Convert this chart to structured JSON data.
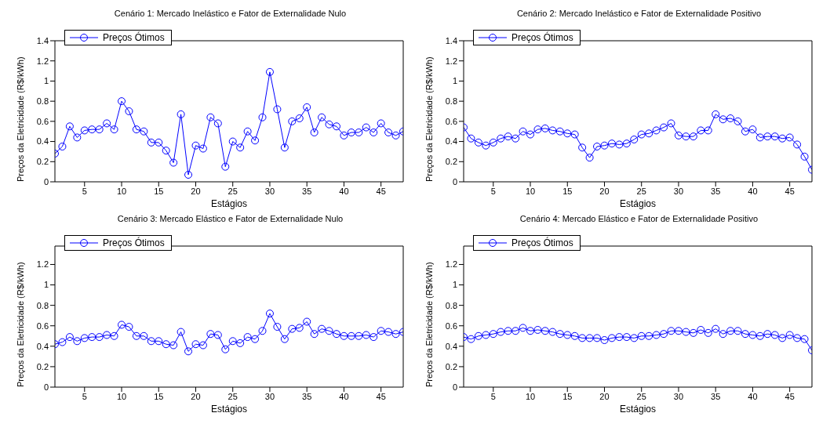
{
  "chart_data": [
    {
      "type": "line",
      "title": "Cenário 1: Mercado Inelástico e Fator de Externalidade Nulo",
      "xlabel": "Estágios",
      "ylabel": "Preços da Eletricidade (R$/kWh)",
      "x": [
        1,
        2,
        3,
        4,
        5,
        6,
        7,
        8,
        9,
        10,
        11,
        12,
        13,
        14,
        15,
        16,
        17,
        18,
        19,
        20,
        21,
        22,
        23,
        24,
        25,
        26,
        27,
        28,
        29,
        30,
        31,
        32,
        33,
        34,
        35,
        36,
        37,
        38,
        39,
        40,
        41,
        42,
        43,
        44,
        45,
        46,
        47,
        48
      ],
      "xlim": [
        1,
        48
      ],
      "xticks": [
        5,
        10,
        15,
        20,
        25,
        30,
        35,
        40,
        45
      ],
      "ylim": [
        0,
        1.4
      ],
      "yticks": [
        0,
        0.2,
        0.4,
        0.6,
        0.8,
        1,
        1.2,
        1.4
      ],
      "grid": false,
      "legend": "top left",
      "marker": "circle",
      "line_style": "solid",
      "series": [
        {
          "name": "Preços Ótimos",
          "color": "#0000ff",
          "values": [
            0.28,
            0.35,
            0.55,
            0.44,
            0.51,
            0.52,
            0.52,
            0.58,
            0.52,
            0.8,
            0.7,
            0.52,
            0.5,
            0.39,
            0.39,
            0.31,
            0.19,
            0.67,
            0.07,
            0.36,
            0.33,
            0.64,
            0.58,
            0.15,
            0.4,
            0.34,
            0.5,
            0.41,
            0.64,
            1.09,
            0.72,
            0.34,
            0.6,
            0.63,
            0.74,
            0.49,
            0.64,
            0.57,
            0.55,
            0.46,
            0.49,
            0.49,
            0.54,
            0.49,
            0.58,
            0.49,
            0.46,
            0.5
          ]
        }
      ]
    },
    {
      "type": "line",
      "title": "Cenário 2: Mercado Inelástico e Fator de Externalidade Positivo",
      "xlabel": "Estágios",
      "ylabel": "Preços da Eletricidade (R$/kWh)",
      "x": [
        1,
        2,
        3,
        4,
        5,
        6,
        7,
        8,
        9,
        10,
        11,
        12,
        13,
        14,
        15,
        16,
        17,
        18,
        19,
        20,
        21,
        22,
        23,
        24,
        25,
        26,
        27,
        28,
        29,
        30,
        31,
        32,
        33,
        34,
        35,
        36,
        37,
        38,
        39,
        40,
        41,
        42,
        43,
        44,
        45,
        46,
        47,
        48
      ],
      "xlim": [
        1,
        48
      ],
      "xticks": [
        5,
        10,
        15,
        20,
        25,
        30,
        35,
        40,
        45
      ],
      "ylim": [
        0,
        1.4
      ],
      "yticks": [
        0,
        0.2,
        0.4,
        0.6,
        0.8,
        1,
        1.2,
        1.4
      ],
      "grid": false,
      "legend": "top left",
      "marker": "circle",
      "line_style": "solid",
      "series": [
        {
          "name": "Preços Ótimos",
          "color": "#0000ff",
          "values": [
            0.54,
            0.43,
            0.39,
            0.36,
            0.39,
            0.43,
            0.45,
            0.43,
            0.5,
            0.47,
            0.52,
            0.53,
            0.51,
            0.5,
            0.48,
            0.47,
            0.34,
            0.24,
            0.35,
            0.36,
            0.38,
            0.37,
            0.38,
            0.42,
            0.47,
            0.48,
            0.51,
            0.54,
            0.58,
            0.46,
            0.45,
            0.45,
            0.51,
            0.51,
            0.67,
            0.62,
            0.63,
            0.6,
            0.5,
            0.52,
            0.44,
            0.45,
            0.45,
            0.43,
            0.44,
            0.37,
            0.25,
            0.12
          ]
        }
      ]
    },
    {
      "type": "line",
      "title": "Cenário 3: Mercado Elástico e Fator de Externalidade Nulo",
      "xlabel": "Estágios",
      "ylabel": "Preços da Eletricidade (R$/kWh)",
      "x": [
        1,
        2,
        3,
        4,
        5,
        6,
        7,
        8,
        9,
        10,
        11,
        12,
        13,
        14,
        15,
        16,
        17,
        18,
        19,
        20,
        21,
        22,
        23,
        24,
        25,
        26,
        27,
        28,
        29,
        30,
        31,
        32,
        33,
        34,
        35,
        36,
        37,
        38,
        39,
        40,
        41,
        42,
        43,
        44,
        45,
        46,
        47,
        48
      ],
      "xlim": [
        1,
        48
      ],
      "xticks": [
        5,
        10,
        15,
        20,
        25,
        30,
        35,
        40,
        45
      ],
      "ylim": [
        0,
        1.38
      ],
      "yticks": [
        0,
        0.2,
        0.4,
        0.6,
        0.8,
        1,
        1.2
      ],
      "grid": false,
      "legend": "top left",
      "marker": "circle",
      "line_style": "solid",
      "series": [
        {
          "name": "Preços Ótimos",
          "color": "#0000ff",
          "values": [
            0.42,
            0.44,
            0.49,
            0.45,
            0.48,
            0.49,
            0.49,
            0.51,
            0.5,
            0.61,
            0.59,
            0.5,
            0.5,
            0.45,
            0.45,
            0.42,
            0.41,
            0.54,
            0.35,
            0.42,
            0.41,
            0.52,
            0.51,
            0.37,
            0.45,
            0.43,
            0.49,
            0.47,
            0.55,
            0.72,
            0.59,
            0.47,
            0.57,
            0.58,
            0.64,
            0.52,
            0.57,
            0.55,
            0.52,
            0.5,
            0.5,
            0.5,
            0.51,
            0.49,
            0.55,
            0.54,
            0.52,
            0.54
          ]
        }
      ]
    },
    {
      "type": "line",
      "title": "Cenário 4: Mercado Elástico e Fator de Externalidade Positivo",
      "xlabel": "Estágios",
      "ylabel": "Preços da Eletricidade (R$/kWh)",
      "x": [
        1,
        2,
        3,
        4,
        5,
        6,
        7,
        8,
        9,
        10,
        11,
        12,
        13,
        14,
        15,
        16,
        17,
        18,
        19,
        20,
        21,
        22,
        23,
        24,
        25,
        26,
        27,
        28,
        29,
        30,
        31,
        32,
        33,
        34,
        35,
        36,
        37,
        38,
        39,
        40,
        41,
        42,
        43,
        44,
        45,
        46,
        47,
        48
      ],
      "xlim": [
        1,
        48
      ],
      "xticks": [
        5,
        10,
        15,
        20,
        25,
        30,
        35,
        40,
        45
      ],
      "ylim": [
        0,
        1.38
      ],
      "yticks": [
        0,
        0.2,
        0.4,
        0.6,
        0.8,
        1,
        1.2
      ],
      "grid": false,
      "legend": "top left",
      "marker": "circle",
      "line_style": "solid",
      "series": [
        {
          "name": "Preços Ótimos",
          "color": "#0000ff",
          "values": [
            0.49,
            0.47,
            0.5,
            0.51,
            0.52,
            0.54,
            0.55,
            0.55,
            0.58,
            0.55,
            0.56,
            0.55,
            0.54,
            0.52,
            0.51,
            0.5,
            0.48,
            0.48,
            0.48,
            0.46,
            0.48,
            0.49,
            0.49,
            0.48,
            0.5,
            0.5,
            0.51,
            0.52,
            0.55,
            0.55,
            0.54,
            0.53,
            0.56,
            0.53,
            0.57,
            0.52,
            0.55,
            0.55,
            0.52,
            0.51,
            0.5,
            0.52,
            0.51,
            0.48,
            0.51,
            0.48,
            0.47,
            0.36
          ]
        }
      ]
    }
  ]
}
